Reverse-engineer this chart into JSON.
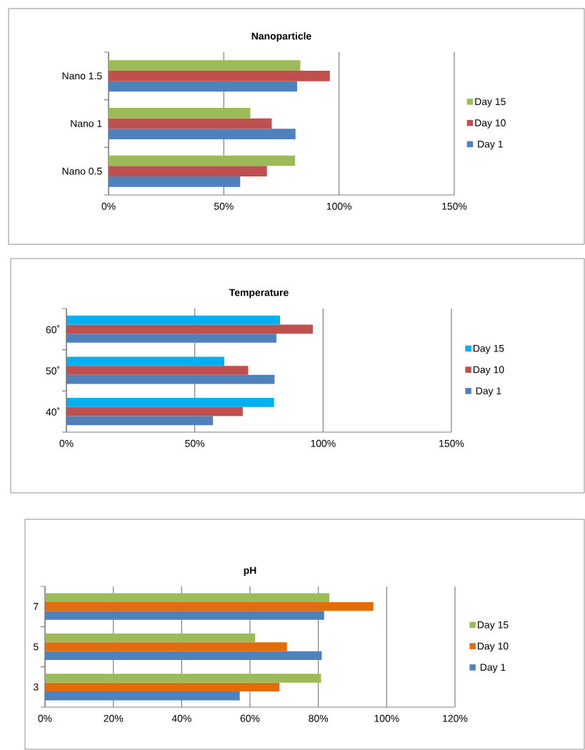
{
  "chart_data": [
    {
      "type": "bar",
      "orientation": "horizontal",
      "title": "Nanoparticle",
      "categories": [
        "Nano 1.5",
        "Nano 1",
        "Nano 0.5"
      ],
      "series": [
        {
          "name": "Day 1",
          "color": "#4f81bd",
          "values": [
            81.8,
            81.1,
            57.1
          ]
        },
        {
          "name": "Day 10",
          "color": "#c0504d",
          "values": [
            96.0,
            70.8,
            68.7
          ]
        },
        {
          "name": "Day 15",
          "color": "#9bbb59",
          "values": [
            83.2,
            61.5,
            80.9
          ]
        }
      ],
      "xlim": [
        0,
        150
      ],
      "xticks": [
        {
          "value": 0,
          "label": "0%"
        },
        {
          "value": 50,
          "label": "50%"
        },
        {
          "value": 100,
          "label": "100%"
        },
        {
          "value": 150,
          "label": "150%"
        }
      ],
      "grid": "x",
      "legend": "right"
    },
    {
      "type": "bar",
      "orientation": "horizontal",
      "title": "Temperature",
      "categories": [
        "60˚",
        "50˚",
        "40˚"
      ],
      "series": [
        {
          "name": "Day 1",
          "color": "#4f81bd",
          "values": [
            81.8,
            81.1,
            57.1
          ]
        },
        {
          "name": "Day 10",
          "color": "#c0504d",
          "values": [
            96.0,
            70.8,
            68.7
          ]
        },
        {
          "name": "Day 15",
          "color": "#00b0f0",
          "values": [
            83.2,
            61.5,
            80.9
          ]
        }
      ],
      "xlim": [
        0,
        150
      ],
      "xticks": [
        {
          "value": 0,
          "label": "0%"
        },
        {
          "value": 50,
          "label": "50%"
        },
        {
          "value": 100,
          "label": "100%"
        },
        {
          "value": 150,
          "label": "150%"
        }
      ],
      "grid": "x",
      "legend": "right"
    },
    {
      "type": "bar",
      "orientation": "horizontal",
      "title": "pH",
      "categories": [
        "7",
        "5",
        "3"
      ],
      "series": [
        {
          "name": "Day 1",
          "color": "#4f81bd",
          "values": [
            81.7,
            81.0,
            57.0
          ]
        },
        {
          "name": "Day 10",
          "color": "#e36c09",
          "values": [
            96.1,
            70.8,
            68.6
          ]
        },
        {
          "name": "Day 15",
          "color": "#9bbb59",
          "values": [
            83.2,
            61.5,
            80.8
          ]
        }
      ],
      "xlim": [
        0,
        120
      ],
      "xticks": [
        {
          "value": 0,
          "label": "0%"
        },
        {
          "value": 20,
          "label": "20%"
        },
        {
          "value": 40,
          "label": "40%"
        },
        {
          "value": 60,
          "label": "60%"
        },
        {
          "value": 80,
          "label": "80%"
        },
        {
          "value": 100,
          "label": "100%"
        },
        {
          "value": 120,
          "label": "120%"
        }
      ],
      "grid": "x",
      "legend": "right"
    }
  ]
}
